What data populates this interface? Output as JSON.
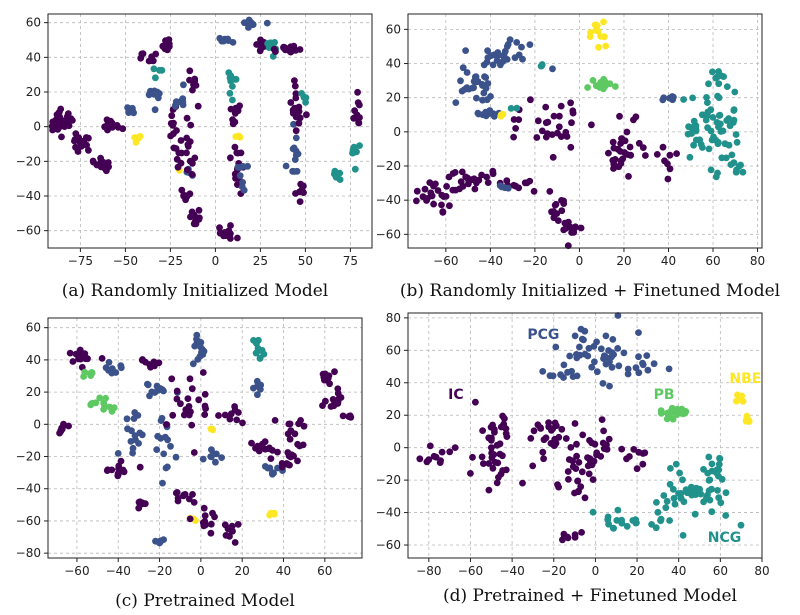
{
  "colors": {
    "IC": "#440154",
    "PCG": "#3b528b",
    "NCG": "#21918c",
    "PB": "#5ec962",
    "NBE": "#fde725"
  },
  "chart_data": [
    {
      "type": "scatter",
      "title": "(a) Randomly Initialized Model",
      "xlim": [
        -93,
        87
      ],
      "ylim": [
        -70,
        65
      ],
      "xticks": [
        -75,
        -50,
        -25,
        0,
        25,
        50,
        75
      ],
      "xtick_labels": [
        "−75",
        "−50",
        "−25",
        "0",
        "25",
        "50",
        "75"
      ],
      "yticks": [
        -60,
        -40,
        -20,
        0,
        20,
        40,
        60
      ],
      "ytick_labels": [
        "−60",
        "−40",
        "−20",
        "0",
        "20",
        "40",
        "60"
      ],
      "grid": true,
      "clusters": [
        {
          "cls": "IC",
          "cx": -85,
          "cy": 3,
          "sx": 3,
          "sy": 3,
          "n": 35
        },
        {
          "cls": "IC",
          "cx": -75,
          "cy": -10,
          "sx": 4,
          "sy": 3,
          "n": 15
        },
        {
          "cls": "IC",
          "cx": -62,
          "cy": -22,
          "sx": 3,
          "sy": 3,
          "n": 15
        },
        {
          "cls": "IC",
          "cx": -58,
          "cy": 2,
          "sx": 3,
          "sy": 1.5,
          "n": 12
        },
        {
          "cls": "PCG",
          "cx": -47,
          "cy": 10,
          "sx": 2,
          "sy": 2,
          "n": 8
        },
        {
          "cls": "NBE",
          "cx": -43,
          "cy": -7,
          "sx": 1,
          "sy": 1,
          "n": 5
        },
        {
          "cls": "IC",
          "cx": -38,
          "cy": 40,
          "sx": 2,
          "sy": 2,
          "n": 8
        },
        {
          "cls": "PCG",
          "cx": -33,
          "cy": 20,
          "sx": 2,
          "sy": 6,
          "n": 10
        },
        {
          "cls": "NCG",
          "cx": -30,
          "cy": 30,
          "sx": 2,
          "sy": 2,
          "n": 4
        },
        {
          "cls": "IC",
          "cx": -27,
          "cy": 47,
          "sx": 1.5,
          "sy": 5,
          "n": 10
        },
        {
          "cls": "NBE",
          "cx": -20,
          "cy": -25,
          "sx": 0.5,
          "sy": 1,
          "n": 2
        },
        {
          "cls": "IC",
          "cx": -22,
          "cy": -8,
          "sx": 2,
          "sy": 10,
          "n": 15
        },
        {
          "cls": "PCG",
          "cx": -20,
          "cy": 15,
          "sx": 2,
          "sy": 4,
          "n": 8
        },
        {
          "cls": "IC",
          "cx": -16,
          "cy": -38,
          "sx": 2,
          "sy": 2,
          "n": 8
        },
        {
          "cls": "IC",
          "cx": -12,
          "cy": 25,
          "sx": 2,
          "sy": 3,
          "n": 8
        },
        {
          "cls": "PCG",
          "cx": -14,
          "cy": -28,
          "sx": 1.5,
          "sy": 2,
          "n": 6
        },
        {
          "cls": "IC",
          "cx": -15,
          "cy": -12,
          "sx": 2,
          "sy": 10,
          "n": 15
        },
        {
          "cls": "IC",
          "cx": -10,
          "cy": -52,
          "sx": 2,
          "sy": 3,
          "n": 10
        },
        {
          "cls": "PCG",
          "cx": 5,
          "cy": 50,
          "sx": 3,
          "sy": 1,
          "n": 8
        },
        {
          "cls": "IC",
          "cx": 8,
          "cy": -60,
          "sx": 4,
          "sy": 2,
          "n": 12
        },
        {
          "cls": "IC",
          "cx": 12,
          "cy": -20,
          "sx": 2,
          "sy": 10,
          "n": 15
        },
        {
          "cls": "NCG",
          "cx": 10,
          "cy": 25,
          "sx": 2,
          "sy": 5,
          "n": 10
        },
        {
          "cls": "NBE",
          "cx": 12,
          "cy": -5,
          "sx": 1,
          "sy": 1,
          "n": 3
        },
        {
          "cls": "IC",
          "cx": 12,
          "cy": 10,
          "sx": 2,
          "sy": 4,
          "n": 10
        },
        {
          "cls": "PCG",
          "cx": 14,
          "cy": -30,
          "sx": 2,
          "sy": 4,
          "n": 8
        },
        {
          "cls": "PCG",
          "cx": 20,
          "cy": 60,
          "sx": 3,
          "sy": 1.5,
          "n": 10
        },
        {
          "cls": "IC",
          "cx": 25,
          "cy": 48,
          "sx": 2,
          "sy": 2,
          "n": 8
        },
        {
          "cls": "NCG",
          "cx": 32,
          "cy": 45,
          "sx": 2,
          "sy": 3,
          "n": 8
        },
        {
          "cls": "IC",
          "cx": 37,
          "cy": 45,
          "sx": 3,
          "sy": 1,
          "n": 10
        },
        {
          "cls": "IC",
          "cx": 43,
          "cy": 45,
          "sx": 2,
          "sy": 1,
          "n": 8
        },
        {
          "cls": "PCG",
          "cx": 44,
          "cy": -18,
          "sx": 2,
          "sy": 8,
          "n": 12
        },
        {
          "cls": "IC",
          "cx": 45,
          "cy": 12,
          "sx": 2,
          "sy": 8,
          "n": 15
        },
        {
          "cls": "IC",
          "cx": 47,
          "cy": -35,
          "sx": 2,
          "sy": 4,
          "n": 8
        },
        {
          "cls": "NCG",
          "cx": 50,
          "cy": 15,
          "sx": 1,
          "sy": 2,
          "n": 4
        },
        {
          "cls": "NCG",
          "cx": 67,
          "cy": -28,
          "sx": 2,
          "sy": 2,
          "n": 8
        },
        {
          "cls": "NCG",
          "cx": 77,
          "cy": -12,
          "sx": 2,
          "sy": 6,
          "n": 8
        },
        {
          "cls": "IC",
          "cx": 79,
          "cy": 8,
          "sx": 1.5,
          "sy": 6,
          "n": 10
        }
      ]
    },
    {
      "type": "scatter",
      "title": "(b) Randomly Initialized + Finetuned Model",
      "xlim": [
        -77,
        82
      ],
      "ylim": [
        -68,
        69
      ],
      "xticks": [
        -60,
        -40,
        -20,
        0,
        20,
        40,
        60,
        80
      ],
      "xtick_labels": [
        "−60",
        "−40",
        "−20",
        "0",
        "20",
        "40",
        "60",
        "80"
      ],
      "yticks": [
        -60,
        -40,
        -20,
        0,
        20,
        40,
        60
      ],
      "ytick_labels": [
        "−60",
        "−40",
        "−20",
        "0",
        "20",
        "40",
        "60"
      ],
      "grid": true,
      "clusters": [
        {
          "cls": "IC",
          "cx": -65,
          "cy": -35,
          "sx": 5,
          "sy": 6,
          "n": 25
        },
        {
          "cls": "IC",
          "cx": -48,
          "cy": -28,
          "sx": 5,
          "sy": 4,
          "n": 20
        },
        {
          "cls": "IC",
          "cx": -30,
          "cy": -32,
          "sx": 6,
          "sy": 2,
          "n": 12
        },
        {
          "cls": "PCG",
          "cx": -33,
          "cy": -30,
          "sx": 2,
          "sy": 2,
          "n": 4
        },
        {
          "cls": "IC",
          "cx": -10,
          "cy": 5,
          "sx": 9,
          "sy": 8,
          "n": 30
        },
        {
          "cls": "IC",
          "cx": -10,
          "cy": -45,
          "sx": 2,
          "sy": 8,
          "n": 15
        },
        {
          "cls": "IC",
          "cx": -3,
          "cy": -55,
          "sx": 2,
          "sy": 5,
          "n": 10
        },
        {
          "cls": "IC",
          "cx": 20,
          "cy": -10,
          "sx": 5,
          "sy": 9,
          "n": 30
        },
        {
          "cls": "IC",
          "cx": 40,
          "cy": -18,
          "sx": 2,
          "sy": 4,
          "n": 8
        },
        {
          "cls": "PCG",
          "cx": -48,
          "cy": 30,
          "sx": 4,
          "sy": 8,
          "n": 30
        },
        {
          "cls": "PCG",
          "cx": -30,
          "cy": 45,
          "sx": 6,
          "sy": 4,
          "n": 25
        },
        {
          "cls": "PCG",
          "cx": -42,
          "cy": 10,
          "sx": 5,
          "sy": 1.5,
          "n": 12
        },
        {
          "cls": "NBE",
          "cx": -35,
          "cy": 10,
          "sx": 1,
          "sy": 1,
          "n": 3
        },
        {
          "cls": "NCG",
          "cx": -28,
          "cy": 15,
          "sx": 1,
          "sy": 1,
          "n": 2
        },
        {
          "cls": "NCG",
          "cx": -17,
          "cy": 38,
          "sx": 1,
          "sy": 2,
          "n": 3
        },
        {
          "cls": "NBE",
          "cx": 8,
          "cy": 58,
          "sx": 2,
          "sy": 4,
          "n": 12
        },
        {
          "cls": "PB",
          "cx": 10,
          "cy": 28,
          "sx": 4,
          "sy": 2,
          "n": 15
        },
        {
          "cls": "NCG",
          "cx": 60,
          "cy": 0,
          "sx": 7,
          "sy": 10,
          "n": 60
        },
        {
          "cls": "NCG",
          "cx": 62,
          "cy": 30,
          "sx": 2,
          "sy": 5,
          "n": 10
        },
        {
          "cls": "NCG",
          "cx": 72,
          "cy": -20,
          "sx": 2,
          "sy": 2,
          "n": 6
        },
        {
          "cls": "PCG",
          "cx": 40,
          "cy": 20,
          "sx": 3,
          "sy": 2,
          "n": 6
        }
      ]
    },
    {
      "type": "scatter",
      "title": "(c) Pretrained Model",
      "xlim": [
        -74,
        78
      ],
      "ylim": [
        -83,
        66
      ],
      "xticks": [
        -60,
        -40,
        -20,
        0,
        20,
        40,
        60
      ],
      "xtick_labels": [
        "−60",
        "−40",
        "−20",
        "0",
        "20",
        "40",
        "60"
      ],
      "yticks": [
        -80,
        -60,
        -40,
        -20,
        0,
        20,
        40,
        60
      ],
      "ytick_labels": [
        "−80",
        "−60",
        "−40",
        "−20",
        "0",
        "20",
        "40",
        "60"
      ],
      "grid": true,
      "clusters": [
        {
          "cls": "IC",
          "cx": -67,
          "cy": -3,
          "sx": 1.5,
          "sy": 1.5,
          "n": 8
        },
        {
          "cls": "IC",
          "cx": -58,
          "cy": 42,
          "sx": 4,
          "sy": 3,
          "n": 15
        },
        {
          "cls": "PB",
          "cx": -53,
          "cy": 30,
          "sx": 2,
          "sy": 2,
          "n": 6
        },
        {
          "cls": "PB",
          "cx": -47,
          "cy": 13,
          "sx": 4,
          "sy": 2,
          "n": 12
        },
        {
          "cls": "PCG",
          "cx": -43,
          "cy": 35,
          "sx": 3,
          "sy": 2,
          "n": 8
        },
        {
          "cls": "IC",
          "cx": -40,
          "cy": -30,
          "sx": 4,
          "sy": 3,
          "n": 12
        },
        {
          "cls": "PCG",
          "cx": -33,
          "cy": -5,
          "sx": 3,
          "sy": 8,
          "n": 15
        },
        {
          "cls": "IC",
          "cx": -30,
          "cy": -48,
          "sx": 2,
          "sy": 2,
          "n": 6
        },
        {
          "cls": "IC",
          "cx": -25,
          "cy": 38,
          "sx": 3,
          "sy": 2,
          "n": 8
        },
        {
          "cls": "PCG",
          "cx": -22,
          "cy": 22,
          "sx": 5,
          "sy": 3,
          "n": 12
        },
        {
          "cls": "PCG",
          "cx": -18,
          "cy": -10,
          "sx": 3,
          "sy": 10,
          "n": 15
        },
        {
          "cls": "PCG",
          "cx": -20,
          "cy": -73,
          "sx": 1.5,
          "sy": 1,
          "n": 6
        },
        {
          "cls": "IC",
          "cx": -5,
          "cy": 10,
          "sx": 6,
          "sy": 10,
          "n": 25
        },
        {
          "cls": "PCG",
          "cx": 0,
          "cy": 50,
          "sx": 2,
          "sy": 8,
          "n": 15
        },
        {
          "cls": "NBE",
          "cx": 5,
          "cy": -3,
          "sx": 1,
          "sy": 1,
          "n": 3
        },
        {
          "cls": "NBE",
          "cx": -4,
          "cy": -60,
          "sx": 1,
          "sy": 1,
          "n": 3
        },
        {
          "cls": "IC",
          "cx": 2,
          "cy": -58,
          "sx": 4,
          "sy": 4,
          "n": 12
        },
        {
          "cls": "PCG",
          "cx": 5,
          "cy": -20,
          "sx": 4,
          "sy": 2,
          "n": 8
        },
        {
          "cls": "IC",
          "cx": -8,
          "cy": -45,
          "sx": 3,
          "sy": 3,
          "n": 10
        },
        {
          "cls": "IC",
          "cx": 15,
          "cy": -65,
          "sx": 3,
          "sy": 3,
          "n": 10
        },
        {
          "cls": "IC",
          "cx": 15,
          "cy": 5,
          "sx": 3,
          "sy": 3,
          "n": 8
        },
        {
          "cls": "NCG",
          "cx": 28,
          "cy": 45,
          "sx": 1.5,
          "sy": 5,
          "n": 10
        },
        {
          "cls": "IC",
          "cx": 28,
          "cy": -12,
          "sx": 3,
          "sy": 3,
          "n": 10
        },
        {
          "cls": "PCG",
          "cx": 28,
          "cy": 25,
          "sx": 2,
          "sy": 3,
          "n": 8
        },
        {
          "cls": "NBE",
          "cx": 33,
          "cy": -57,
          "sx": 1.5,
          "sy": 1.5,
          "n": 4
        },
        {
          "cls": "PCG",
          "cx": 35,
          "cy": -28,
          "sx": 2,
          "sy": 2,
          "n": 8
        },
        {
          "cls": "IC",
          "cx": 40,
          "cy": -15,
          "sx": 5,
          "sy": 6,
          "n": 20
        },
        {
          "cls": "IC",
          "cx": 45,
          "cy": 0,
          "sx": 3,
          "sy": 3,
          "n": 8
        },
        {
          "cls": "IC",
          "cx": 60,
          "cy": 30,
          "sx": 2,
          "sy": 2,
          "n": 10
        },
        {
          "cls": "IC",
          "cx": 65,
          "cy": 15,
          "sx": 4,
          "sy": 3,
          "n": 12
        },
        {
          "cls": "IC",
          "cx": 70,
          "cy": 5,
          "sx": 1.5,
          "sy": 1.5,
          "n": 5
        }
      ]
    },
    {
      "type": "scatter",
      "title": "(d) Pretrained + Finetuned Model",
      "xlim": [
        -90,
        80
      ],
      "ylim": [
        -68,
        83
      ],
      "xticks": [
        -80,
        -60,
        -40,
        -20,
        0,
        20,
        40,
        60,
        80
      ],
      "xtick_labels": [
        "−80",
        "−60",
        "−40",
        "−20",
        "0",
        "20",
        "40",
        "60",
        "80"
      ],
      "yticks": [
        -60,
        -40,
        -20,
        0,
        20,
        40,
        60,
        80
      ],
      "ytick_labels": [
        "−60",
        "−40",
        "−20",
        "0",
        "20",
        "40",
        "60",
        "80"
      ],
      "grid": true,
      "annotations": [
        {
          "text": "PCG",
          "cls": "PCG",
          "x": -25,
          "y": 67
        },
        {
          "text": "IC",
          "cls": "IC",
          "x": -67,
          "y": 30
        },
        {
          "text": "PB",
          "cls": "PB",
          "x": 33,
          "y": 30
        },
        {
          "text": "NBE",
          "cls": "NBE",
          "x": 72,
          "y": 40
        },
        {
          "text": "NCG",
          "cls": "NCG",
          "x": 62,
          "y": -58
        }
      ],
      "clusters": [
        {
          "cls": "IC",
          "cx": -78,
          "cy": -5,
          "sx": 4,
          "sy": 3,
          "n": 10
        },
        {
          "cls": "IC",
          "cx": -50,
          "cy": 0,
          "sx": 5,
          "sy": 12,
          "n": 40
        },
        {
          "cls": "IC",
          "cx": -20,
          "cy": 5,
          "sx": 5,
          "sy": 8,
          "n": 25
        },
        {
          "cls": "IC",
          "cx": -10,
          "cy": -15,
          "sx": 6,
          "sy": 10,
          "n": 30
        },
        {
          "cls": "IC",
          "cx": 5,
          "cy": 5,
          "sx": 5,
          "sy": 6,
          "n": 15
        },
        {
          "cls": "IC",
          "cx": 20,
          "cy": -5,
          "sx": 3,
          "sy": 4,
          "n": 8
        },
        {
          "cls": "IC",
          "cx": -12,
          "cy": -55,
          "sx": 4,
          "sy": 1.5,
          "n": 8
        },
        {
          "cls": "PCG",
          "cx": 0,
          "cy": 58,
          "sx": 8,
          "sy": 8,
          "n": 40
        },
        {
          "cls": "PCG",
          "cx": -15,
          "cy": 45,
          "sx": 4,
          "sy": 2,
          "n": 8
        },
        {
          "cls": "PCG",
          "cx": 20,
          "cy": 52,
          "sx": 5,
          "sy": 4,
          "n": 12
        },
        {
          "cls": "PB",
          "cx": 38,
          "cy": 22,
          "sx": 3,
          "sy": 2,
          "n": 18
        },
        {
          "cls": "NBE",
          "cx": 68,
          "cy": 30,
          "sx": 2,
          "sy": 1,
          "n": 6
        },
        {
          "cls": "NBE",
          "cx": 73,
          "cy": 17,
          "sx": 1.5,
          "sy": 1,
          "n": 6
        },
        {
          "cls": "NCG",
          "cx": 48,
          "cy": -28,
          "sx": 8,
          "sy": 8,
          "n": 45
        },
        {
          "cls": "NCG",
          "cx": 20,
          "cy": -45,
          "sx": 10,
          "sy": 4,
          "n": 25
        },
        {
          "cls": "NCG",
          "cx": 58,
          "cy": -15,
          "sx": 3,
          "sy": 6,
          "n": 10
        }
      ]
    }
  ]
}
